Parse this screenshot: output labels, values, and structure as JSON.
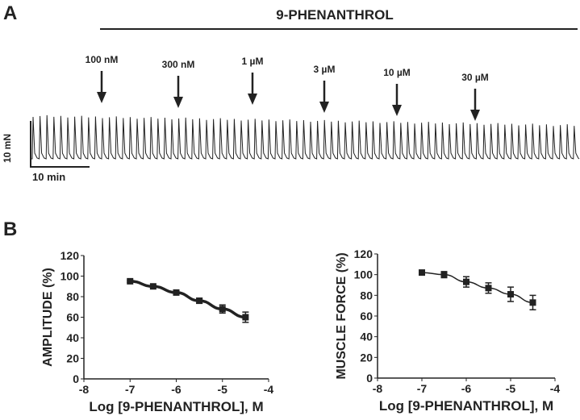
{
  "panel_a": {
    "label": "A",
    "drug_label": "9-PHENANTHROL",
    "concentrations": [
      "100 nM",
      "300 nM",
      "1 µM",
      "3 µM",
      "10 µM",
      "30 µM"
    ],
    "scale_force": "10 mN",
    "scale_time": "10 min"
  },
  "panel_b": {
    "label": "B"
  },
  "chart_data": [
    {
      "type": "line",
      "title": "",
      "xlabel": "Log [9-PHENANTHROL], M",
      "ylabel": "AMPLITUDE (%)",
      "xlim": [
        -8,
        -4
      ],
      "ylim": [
        0,
        120
      ],
      "xticks": [
        "-8",
        "-7",
        "-6",
        "-5",
        "-4"
      ],
      "yticks": [
        "0",
        "20",
        "40",
        "60",
        "80",
        "100",
        "120"
      ],
      "x": [
        -7,
        -6.5,
        -6,
        -5.5,
        -5,
        -4.5
      ],
      "y": [
        95,
        90,
        84,
        76,
        68,
        60
      ],
      "err": [
        1,
        1,
        1.5,
        2.5,
        4,
        5
      ],
      "fit": true
    },
    {
      "type": "line",
      "title": "",
      "xlabel": "Log [9-PHENANTHROL], M",
      "ylabel": "MUSCLE FORCE (%)",
      "xlim": [
        -8,
        -4
      ],
      "ylim": [
        0,
        120
      ],
      "xticks": [
        "-8",
        "-7",
        "-6",
        "-5",
        "-4"
      ],
      "yticks": [
        "0",
        "20",
        "40",
        "60",
        "80",
        "100",
        "120"
      ],
      "x": [
        -7,
        -6.5,
        -6,
        -5.5,
        -5,
        -4.5
      ],
      "y": [
        102,
        100,
        93,
        87,
        81,
        73
      ],
      "err": [
        1,
        3,
        5,
        5,
        7,
        7
      ],
      "fit": true
    }
  ]
}
